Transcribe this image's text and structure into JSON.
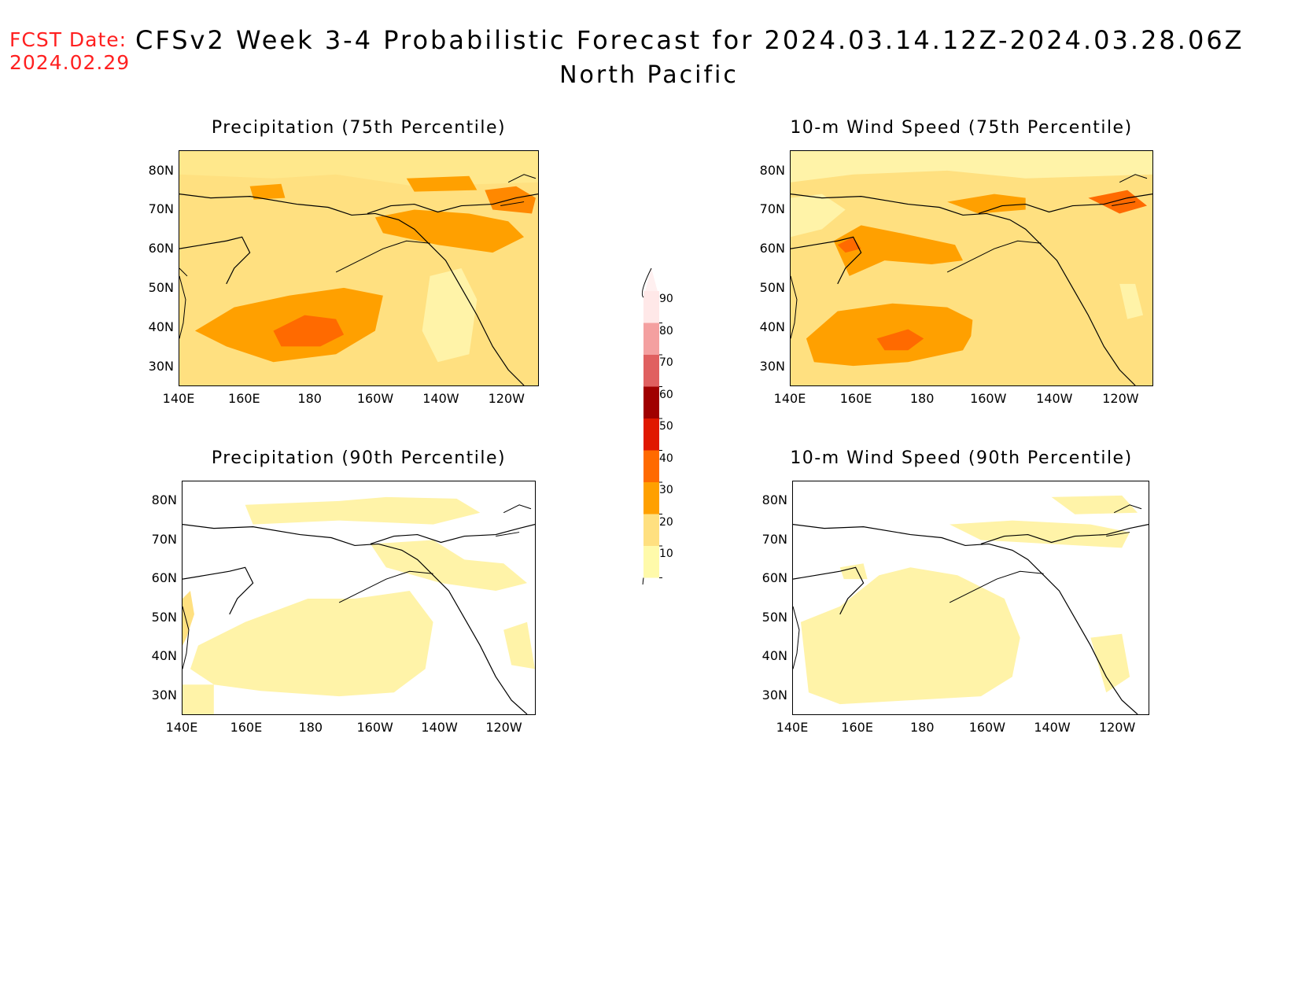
{
  "header": {
    "fcst_label": "FCST Date:",
    "fcst_date": "2024.02.29",
    "title": "CFSv2 Week 3-4 Probabilistic Forecast for 2024.03.14.12Z-2024.03.28.06Z",
    "subtitle": "North Pacific"
  },
  "panels": [
    {
      "title": "Precipitation (75th Percentile)"
    },
    {
      "title": "10-m Wind Speed (75th Percentile)"
    },
    {
      "title": "Precipitation (90th Percentile)"
    },
    {
      "title": "10-m Wind Speed (90th Percentile)"
    }
  ],
  "axes": {
    "lat_labels": [
      "80N",
      "70N",
      "60N",
      "50N",
      "40N",
      "30N"
    ],
    "lon_labels": [
      "140E",
      "160E",
      "180",
      "160W",
      "140W",
      "120W"
    ]
  },
  "colorbar": {
    "levels": [
      "90",
      "80",
      "70",
      "60",
      "50",
      "40",
      "30",
      "20",
      "10"
    ],
    "colors": [
      "#ffe8e8",
      "#f4a0a0",
      "#e06060",
      "#a00000",
      "#e01800",
      "#ff6a00",
      "#ffa000",
      "#ffe080",
      "#fffaaa"
    ]
  }
}
